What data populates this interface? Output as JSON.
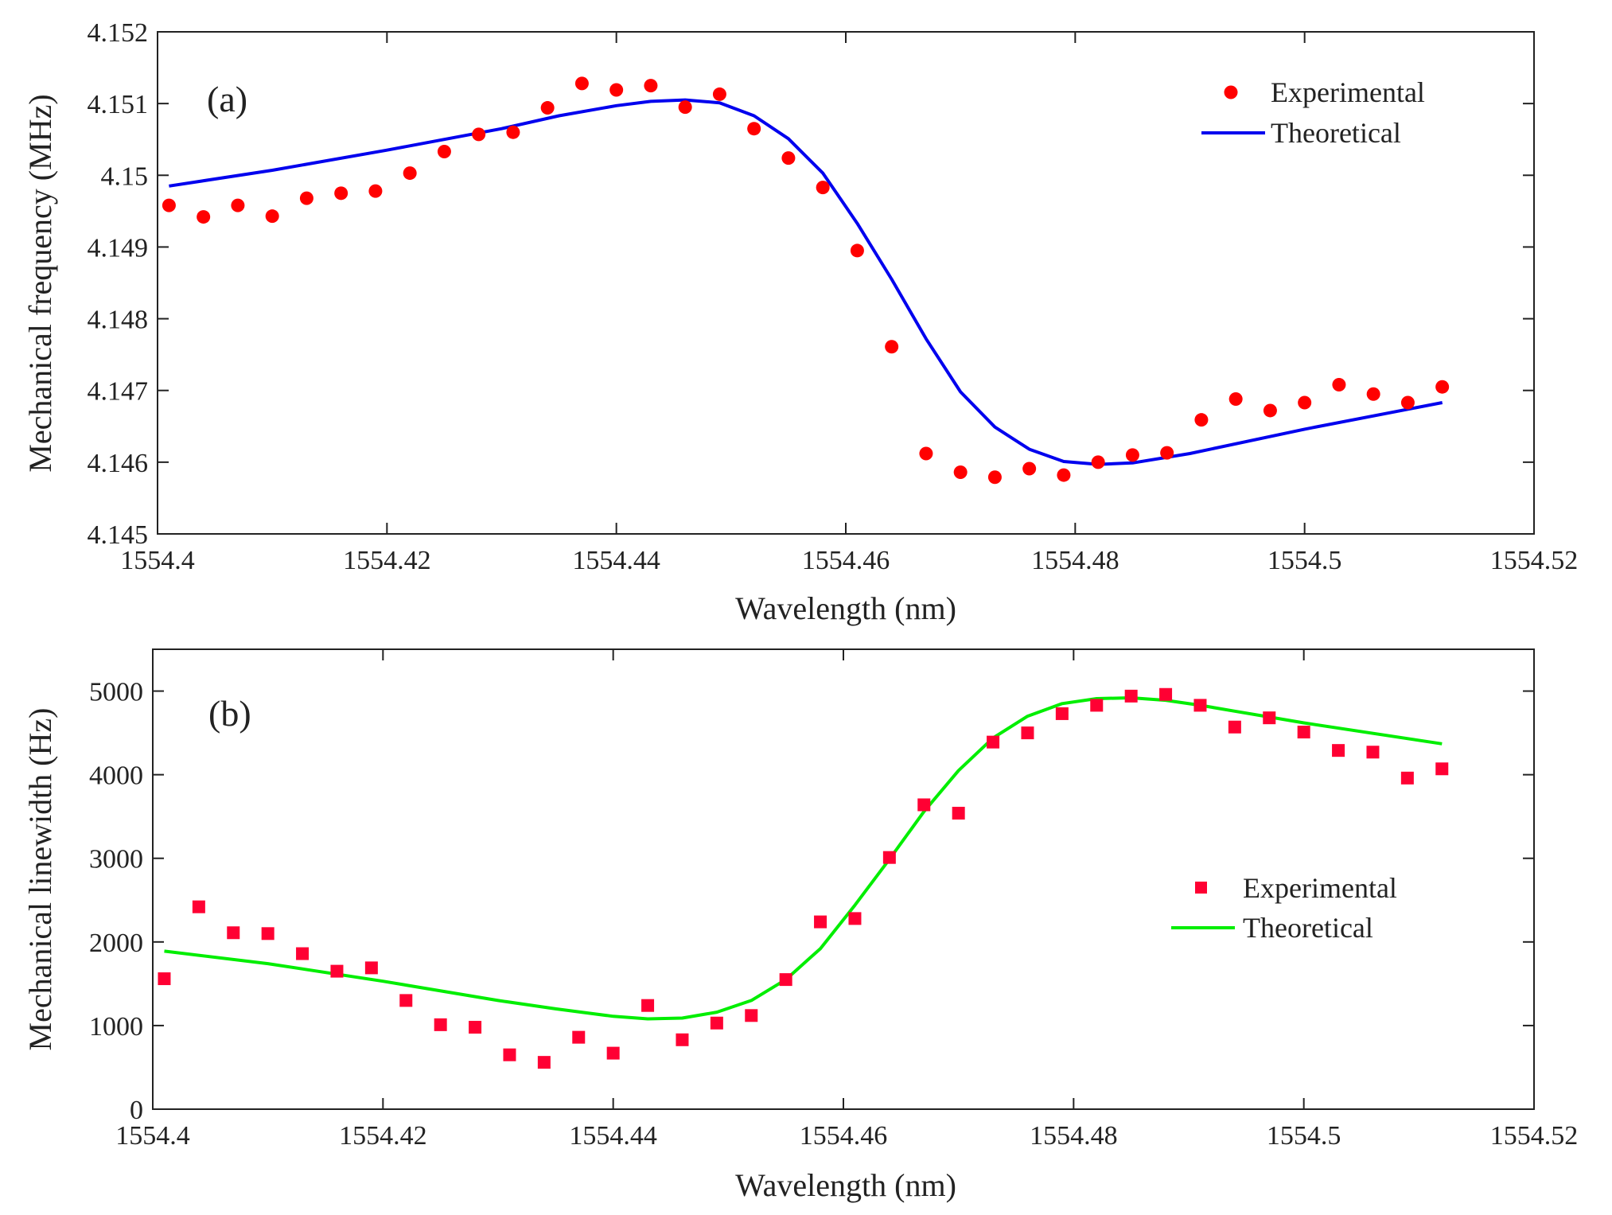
{
  "chart_data": [
    {
      "type": "line",
      "panel_label": "(a)",
      "xlabel": "Wavelength (nm)",
      "ylabel": "Mechanical frequency (MHz)",
      "xlim": [
        1554.4,
        1554.52
      ],
      "ylim": [
        4.145,
        4.152
      ],
      "xticks": [
        1554.4,
        1554.42,
        1554.44,
        1554.46,
        1554.48,
        1554.5,
        1554.52
      ],
      "xtick_labels": [
        "1554.4",
        "1554.42",
        "1554.44",
        "1554.46",
        "1554.48",
        "1554.5",
        "1554.52"
      ],
      "yticks": [
        4.145,
        4.146,
        4.147,
        4.148,
        4.149,
        4.15,
        4.151,
        4.152
      ],
      "ytick_labels": [
        "4.145",
        "4.146",
        "4.147",
        "4.148",
        "4.149",
        "4.15",
        "4.151",
        "4.152"
      ],
      "legend_position": "top-right",
      "series": [
        {
          "name": "Experimental",
          "style": "circle-markers",
          "color": "#ff0000",
          "x": [
            1554.401,
            1554.404,
            1554.407,
            1554.41,
            1554.413,
            1554.416,
            1554.419,
            1554.422,
            1554.425,
            1554.428,
            1554.431,
            1554.434,
            1554.437,
            1554.44,
            1554.443,
            1554.446,
            1554.449,
            1554.452,
            1554.455,
            1554.458,
            1554.461,
            1554.464,
            1554.467,
            1554.47,
            1554.473,
            1554.476,
            1554.479,
            1554.482,
            1554.485,
            1554.488,
            1554.491,
            1554.494,
            1554.497,
            1554.5,
            1554.503,
            1554.506,
            1554.509,
            1554.512
          ],
          "y": [
            4.14958,
            4.14942,
            4.14958,
            4.14943,
            4.14968,
            4.14975,
            4.14978,
            4.15003,
            4.15033,
            4.15057,
            4.1506,
            4.15094,
            4.15128,
            4.15119,
            4.15125,
            4.15095,
            4.15113,
            4.15065,
            4.15024,
            4.14983,
            4.14895,
            4.14761,
            4.14612,
            4.14586,
            4.14579,
            4.14591,
            4.14582,
            4.146,
            4.1461,
            4.14613,
            4.14659,
            4.14688,
            4.14672,
            4.14683,
            4.14708,
            4.14695,
            4.14683,
            4.14705
          ]
        },
        {
          "name": "Theoretical",
          "style": "line",
          "color": "#0000ee",
          "x": [
            1554.401,
            1554.41,
            1554.42,
            1554.43,
            1554.435,
            1554.44,
            1554.443,
            1554.446,
            1554.449,
            1554.452,
            1554.455,
            1554.458,
            1554.461,
            1554.464,
            1554.467,
            1554.47,
            1554.473,
            1554.476,
            1554.479,
            1554.482,
            1554.485,
            1554.49,
            1554.5,
            1554.512
          ],
          "y": [
            4.14985,
            4.15007,
            4.15035,
            4.15065,
            4.15083,
            4.15097,
            4.15103,
            4.15105,
            4.15101,
            4.15083,
            4.15051,
            4.15003,
            4.14933,
            4.14855,
            4.14772,
            4.14698,
            4.14649,
            4.14618,
            4.14601,
            4.14597,
            4.14599,
            4.14612,
            4.14646,
            4.14683
          ]
        }
      ]
    },
    {
      "type": "line",
      "panel_label": "(b)",
      "xlabel": "Wavelength (nm)",
      "ylabel": "Mechanical linewidth (Hz)",
      "xlim": [
        1554.4,
        1554.52
      ],
      "ylim": [
        0,
        5500
      ],
      "xticks": [
        1554.4,
        1554.42,
        1554.44,
        1554.46,
        1554.48,
        1554.5,
        1554.52
      ],
      "xtick_labels": [
        "1554.4",
        "1554.42",
        "1554.44",
        "1554.46",
        "1554.48",
        "1554.5",
        "1554.52"
      ],
      "yticks": [
        0,
        1000,
        2000,
        3000,
        4000,
        5000
      ],
      "ytick_labels": [
        "0",
        "1000",
        "2000",
        "3000",
        "4000",
        "5000"
      ],
      "legend_position": "middle-right",
      "series": [
        {
          "name": "Experimental",
          "style": "square-markers",
          "color": "#ff0033",
          "x": [
            1554.401,
            1554.404,
            1554.407,
            1554.41,
            1554.413,
            1554.416,
            1554.419,
            1554.422,
            1554.425,
            1554.428,
            1554.431,
            1554.434,
            1554.437,
            1554.44,
            1554.443,
            1554.446,
            1554.449,
            1554.452,
            1554.455,
            1554.458,
            1554.461,
            1554.464,
            1554.467,
            1554.47,
            1554.473,
            1554.476,
            1554.479,
            1554.482,
            1554.485,
            1554.488,
            1554.491,
            1554.494,
            1554.497,
            1554.5,
            1554.503,
            1554.506,
            1554.509,
            1554.512
          ],
          "y": [
            1560,
            2420,
            2110,
            2100,
            1860,
            1650,
            1690,
            1300,
            1010,
            980,
            650,
            560,
            860,
            670,
            1240,
            830,
            1030,
            1120,
            1550,
            2240,
            2280,
            3010,
            3640,
            3540,
            4390,
            4500,
            4730,
            4830,
            4940,
            4960,
            4830,
            4570,
            4680,
            4510,
            4290,
            4270,
            3960,
            4070
          ]
        },
        {
          "name": "Theoretical",
          "style": "line",
          "color": "#00ee00",
          "x": [
            1554.401,
            1554.41,
            1554.42,
            1554.43,
            1554.435,
            1554.44,
            1554.443,
            1554.446,
            1554.449,
            1554.452,
            1554.455,
            1554.458,
            1554.461,
            1554.464,
            1554.467,
            1554.47,
            1554.473,
            1554.476,
            1554.479,
            1554.482,
            1554.485,
            1554.488,
            1554.491,
            1554.494,
            1554.497,
            1554.5,
            1554.512
          ],
          "y": [
            1890,
            1740,
            1530,
            1300,
            1200,
            1110,
            1080,
            1090,
            1160,
            1300,
            1550,
            1920,
            2440,
            2990,
            3560,
            4050,
            4440,
            4700,
            4850,
            4910,
            4920,
            4890,
            4830,
            4760,
            4690,
            4620,
            4370
          ]
        }
      ]
    }
  ]
}
